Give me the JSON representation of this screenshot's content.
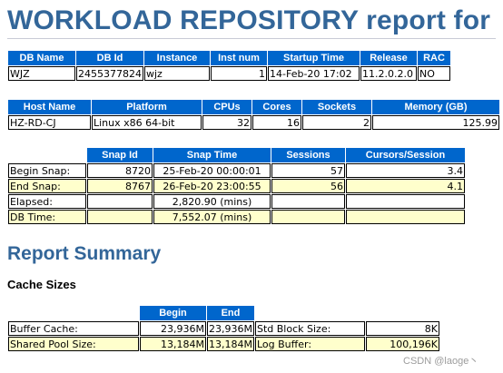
{
  "title": "WORKLOAD REPOSITORY report for",
  "db_table": {
    "headers": [
      "DB Name",
      "DB Id",
      "Instance",
      "Inst num",
      "Startup Time",
      "Release",
      "RAC"
    ],
    "row": [
      "WJZ",
      "2455377824",
      "wjz",
      "1",
      "14-Feb-20 17:02",
      "11.2.0.2.0",
      "NO"
    ]
  },
  "host_table": {
    "headers": [
      "Host Name",
      "Platform",
      "CPUs",
      "Cores",
      "Sockets",
      "Memory (GB)"
    ],
    "row": [
      "HZ-RD-CJ",
      "Linux x86 64-bit",
      "32",
      "16",
      "2",
      "125.99"
    ]
  },
  "snap_table": {
    "headers": [
      "",
      "Snap Id",
      "Snap Time",
      "Sessions",
      "Cursors/Session"
    ],
    "rows": [
      [
        "Begin Snap:",
        "8720",
        "25-Feb-20 00:00:01",
        "57",
        "3.4"
      ],
      [
        "End Snap:",
        "8767",
        "26-Feb-20 23:00:55",
        "56",
        "4.1"
      ],
      [
        "Elapsed:",
        "",
        "2,820.90 (mins)",
        "",
        ""
      ],
      [
        "DB Time:",
        "",
        "7,552.07 (mins)",
        "",
        ""
      ]
    ]
  },
  "report_summary": "Report Summary",
  "cache_sizes": "Cache Sizes",
  "cache_table": {
    "headers": [
      "",
      "Begin",
      "End",
      "",
      ""
    ],
    "rows": [
      [
        "Buffer Cache:",
        "23,936M",
        "23,936M",
        "Std Block Size:",
        "8K"
      ],
      [
        "Shared Pool Size:",
        "13,184M",
        "13,184M",
        "Log Buffer:",
        "100,196K"
      ]
    ]
  },
  "watermark": "CSDN @laoge丶"
}
